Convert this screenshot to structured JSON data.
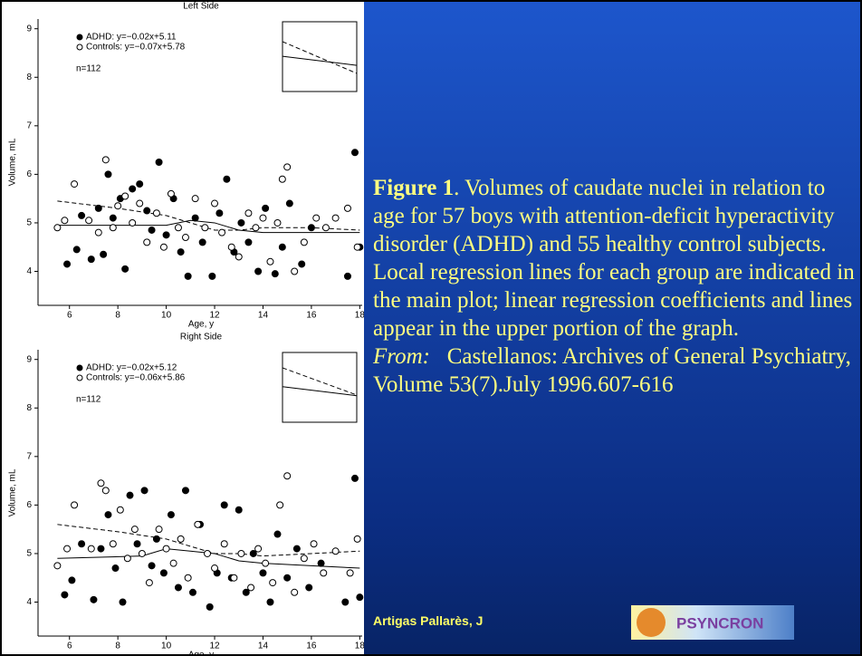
{
  "chart_data": [
    {
      "type": "scatter",
      "title": "Left Side",
      "x_label": "Age, y",
      "y_label": "Volume, mL",
      "xlim": [
        4.7,
        18.1
      ],
      "ylim": [
        3.3,
        9.2
      ],
      "xticks": [
        6,
        8,
        10,
        12,
        14,
        16,
        18
      ],
      "yticks": [
        4,
        5,
        6,
        7,
        8,
        9
      ],
      "annotation": "n=112",
      "series": [
        {
          "name": "ADHD: y=−0.02x+5.11",
          "color": "#000000",
          "marker": "filled",
          "x": [
            5.9,
            6.3,
            6.5,
            6.9,
            7.2,
            7.4,
            7.6,
            7.8,
            8.1,
            8.3,
            8.6,
            8.9,
            9.2,
            9.4,
            9.7,
            10.0,
            10.3,
            10.6,
            10.9,
            11.2,
            11.5,
            11.9,
            12.2,
            12.5,
            12.8,
            13.1,
            13.4,
            13.8,
            14.1,
            14.5,
            14.8,
            15.1,
            15.6,
            16.0,
            17.5,
            17.8,
            18.0
          ],
          "values": [
            4.15,
            4.45,
            5.15,
            4.25,
            5.3,
            4.35,
            6.0,
            5.1,
            5.5,
            4.05,
            5.7,
            5.8,
            5.25,
            4.85,
            6.25,
            4.75,
            5.5,
            4.4,
            3.9,
            5.1,
            4.6,
            3.9,
            5.2,
            5.9,
            4.4,
            5.0,
            4.6,
            4.0,
            5.3,
            3.95,
            4.5,
            5.4,
            4.15,
            4.9,
            3.9,
            6.45,
            4.5
          ],
          "fit_x": [
            5.5,
            9,
            10,
            11,
            12,
            13,
            14,
            16,
            18
          ],
          "fit_values": [
            4.95,
            4.95,
            4.95,
            5.05,
            5.0,
            4.85,
            4.8,
            4.8,
            4.8
          ],
          "dash": false
        },
        {
          "name": "Controls: y=−0.07x+5.78",
          "color": "#000000",
          "marker": "open",
          "x": [
            5.5,
            5.8,
            6.2,
            6.8,
            7.2,
            7.5,
            7.8,
            8.0,
            8.3,
            8.6,
            8.9,
            9.2,
            9.6,
            9.9,
            10.2,
            10.5,
            10.8,
            11.2,
            11.6,
            12.0,
            12.3,
            12.7,
            13.0,
            13.4,
            13.7,
            14.0,
            14.3,
            14.6,
            14.8,
            15.0,
            15.3,
            15.7,
            16.2,
            16.6,
            17.0,
            17.5,
            17.9
          ],
          "values": [
            4.9,
            5.05,
            5.8,
            5.05,
            4.8,
            6.3,
            4.9,
            5.35,
            5.55,
            5.0,
            5.4,
            4.6,
            5.2,
            4.5,
            5.6,
            4.9,
            4.7,
            5.5,
            4.9,
            5.4,
            4.8,
            4.5,
            4.3,
            5.2,
            4.9,
            5.1,
            4.2,
            5.0,
            5.9,
            6.15,
            4.0,
            4.6,
            5.1,
            4.9,
            5.1,
            5.3,
            4.5
          ],
          "fit_x": [
            5.5,
            8,
            10,
            11,
            12,
            13,
            14,
            16,
            18
          ],
          "fit_values": [
            5.45,
            5.3,
            5.15,
            5.0,
            4.85,
            4.85,
            4.9,
            4.9,
            4.85
          ],
          "dash": true
        }
      ],
      "inset": {
        "xlim": [
          5,
          18
        ],
        "ylim": [
          4,
          6
        ],
        "lines": [
          [
            5.01,
            4.75
          ],
          [
            5.43,
            4.52
          ]
        ]
      }
    },
    {
      "type": "scatter",
      "title": "Right Side",
      "x_label": "Age, y",
      "y_label": "Volume, mL",
      "xlim": [
        4.7,
        18.1
      ],
      "ylim": [
        3.3,
        9.2
      ],
      "xticks": [
        6,
        8,
        10,
        12,
        14,
        16,
        18
      ],
      "yticks": [
        4,
        5,
        6,
        7,
        8,
        9
      ],
      "annotation": "n=112",
      "series": [
        {
          "name": "ADHD: y=−0.02x+5.12",
          "color": "#000000",
          "marker": "filled",
          "x": [
            5.8,
            6.1,
            6.5,
            7.0,
            7.3,
            7.6,
            7.9,
            8.2,
            8.5,
            8.8,
            9.1,
            9.4,
            9.6,
            9.9,
            10.2,
            10.5,
            10.8,
            11.1,
            11.4,
            11.8,
            12.1,
            12.4,
            12.7,
            13.0,
            13.3,
            13.6,
            14.0,
            14.3,
            14.6,
            15.0,
            15.4,
            15.9,
            16.4,
            17.4,
            17.8,
            18.0
          ],
          "values": [
            4.15,
            4.45,
            5.2,
            4.05,
            5.1,
            5.8,
            4.7,
            4.0,
            6.2,
            5.2,
            6.3,
            4.75,
            5.3,
            4.6,
            5.8,
            4.3,
            6.3,
            4.2,
            5.6,
            3.9,
            4.6,
            6.0,
            4.5,
            5.9,
            4.2,
            5.0,
            4.6,
            4.0,
            5.4,
            4.5,
            5.1,
            4.3,
            4.8,
            4.0,
            6.55,
            4.1
          ],
          "fit_x": [
            5.5,
            9,
            10,
            11,
            12,
            13,
            14,
            16,
            18
          ],
          "fit_values": [
            4.9,
            4.95,
            5.1,
            5.05,
            5.0,
            4.85,
            4.8,
            4.75,
            4.7
          ],
          "dash": false
        },
        {
          "name": "Controls: y=−0.06x+5.86",
          "color": "#000000",
          "marker": "open",
          "x": [
            5.5,
            5.9,
            6.2,
            6.9,
            7.3,
            7.5,
            7.8,
            8.1,
            8.4,
            8.7,
            9.0,
            9.3,
            9.7,
            10.0,
            10.3,
            10.6,
            10.9,
            11.3,
            11.7,
            12.0,
            12.4,
            12.8,
            13.1,
            13.5,
            13.8,
            14.1,
            14.4,
            14.7,
            15.0,
            15.3,
            15.7,
            16.1,
            16.5,
            17.0,
            17.6,
            17.9
          ],
          "values": [
            4.75,
            5.1,
            6.0,
            5.1,
            6.45,
            6.3,
            5.2,
            5.9,
            4.9,
            5.5,
            5.0,
            4.4,
            5.5,
            5.1,
            4.8,
            5.3,
            4.5,
            5.6,
            5.0,
            4.7,
            5.2,
            4.5,
            5.0,
            4.3,
            5.1,
            4.8,
            4.4,
            6.0,
            6.6,
            4.2,
            4.9,
            5.2,
            4.6,
            5.05,
            4.6,
            5.3
          ],
          "fit_x": [
            5.5,
            8,
            10,
            11,
            12,
            13,
            14,
            16,
            18
          ],
          "fit_values": [
            5.6,
            5.45,
            5.3,
            5.15,
            5.0,
            5.0,
            4.95,
            5.0,
            5.05
          ],
          "dash": true
        }
      ],
      "inset": {
        "xlim": [
          5,
          18
        ],
        "ylim": [
          4,
          6
        ],
        "lines": [
          [
            5.02,
            4.76
          ],
          [
            5.56,
            4.78
          ]
        ]
      }
    }
  ],
  "caption": {
    "label": "Figure 1",
    "text": ". Volumes of caudate nuclei in relation to age for 57 boys with attention-deficit hyperactivity disorder (ADHD) and 55 healthy control subjects. Local regression lines for each group are indicated in the main plot; linear regression coefficients and lines appear in the upper portion of the graph.",
    "source_label": "From:",
    "source_text": "Castellanos: Archives of General Psychiatry, Volume 53(7).July 1996.607-616"
  },
  "author": "Artigas Pallarès, J",
  "logo": "PSYNCRON"
}
